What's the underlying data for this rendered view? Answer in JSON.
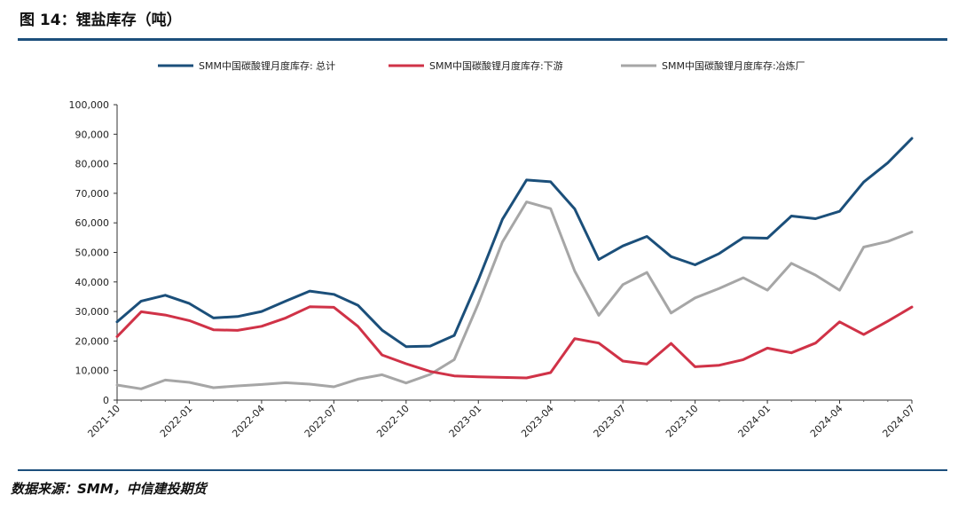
{
  "header": {
    "title": "图 14：锂盐库存（吨）"
  },
  "footer": {
    "source": "数据来源：SMM，中信建投期货"
  },
  "chart_data": {
    "type": "line",
    "title": "图 14：锂盐库存（吨）",
    "xlabel": "",
    "ylabel": "",
    "ylim": [
      0,
      100000
    ],
    "yticks": [
      "0",
      "10,000",
      "20,000",
      "30,000",
      "40,000",
      "50,000",
      "60,000",
      "70,000",
      "80,000",
      "90,000",
      "100,000"
    ],
    "x": [
      "2021-10",
      "2021-11",
      "2021-12",
      "2022-01",
      "2022-02",
      "2022-03",
      "2022-04",
      "2022-05",
      "2022-06",
      "2022-07",
      "2022-08",
      "2022-09",
      "2022-10",
      "2022-11",
      "2022-12",
      "2023-01",
      "2023-02",
      "2023-03",
      "2023-04",
      "2023-05",
      "2023-06",
      "2023-07",
      "2023-08",
      "2023-09",
      "2023-10",
      "2023-11",
      "2023-12",
      "2024-01",
      "2024-02",
      "2024-03",
      "2024-04",
      "2024-05",
      "2024-06",
      "2024-07"
    ],
    "xtick_labels": [
      "2021-10",
      "2022-01",
      "2022-04",
      "2022-07",
      "2022-10",
      "2023-01",
      "2023-04",
      "2023-07",
      "2023-10",
      "2024-01",
      "2024-04",
      "2024-07"
    ],
    "legend_position": "top",
    "series": [
      {
        "name": "SMM中国碳酸锂月度库存: 总计",
        "color": "#1b4f7a",
        "values": [
          26500,
          33500,
          35500,
          32700,
          27800,
          28300,
          30000,
          33500,
          36900,
          35800,
          32100,
          23700,
          18100,
          18300,
          21900,
          40700,
          61200,
          74500,
          73900,
          64700,
          47600,
          52200,
          55400,
          48600,
          45800,
          49600,
          55000,
          54800,
          62300,
          61400,
          63900,
          73800,
          80300,
          88600
        ]
      },
      {
        "name": "SMM中国碳酸锂月度库存:下游",
        "color": "#d03247",
        "values": [
          21500,
          29900,
          28800,
          26900,
          23800,
          23600,
          25000,
          27800,
          31600,
          31400,
          25000,
          15300,
          12300,
          9700,
          8200,
          7900,
          7700,
          7500,
          9300,
          20800,
          19300,
          13200,
          12200,
          19200,
          11300,
          11800,
          13700,
          17600,
          16000,
          19300,
          26500,
          22200,
          26700,
          31500
        ]
      },
      {
        "name": "SMM中国碳酸锂月度库存:冶炼厂",
        "color": "#a6a6a6",
        "values": [
          5100,
          3800,
          6800,
          6000,
          4200,
          4800,
          5300,
          5900,
          5400,
          4500,
          7100,
          8600,
          5800,
          8700,
          13700,
          32700,
          53500,
          67100,
          64800,
          43700,
          28700,
          39100,
          43200,
          29500,
          34600,
          37800,
          41400,
          37200,
          46300,
          42300,
          37200,
          51800,
          53700,
          56900
        ]
      }
    ]
  }
}
